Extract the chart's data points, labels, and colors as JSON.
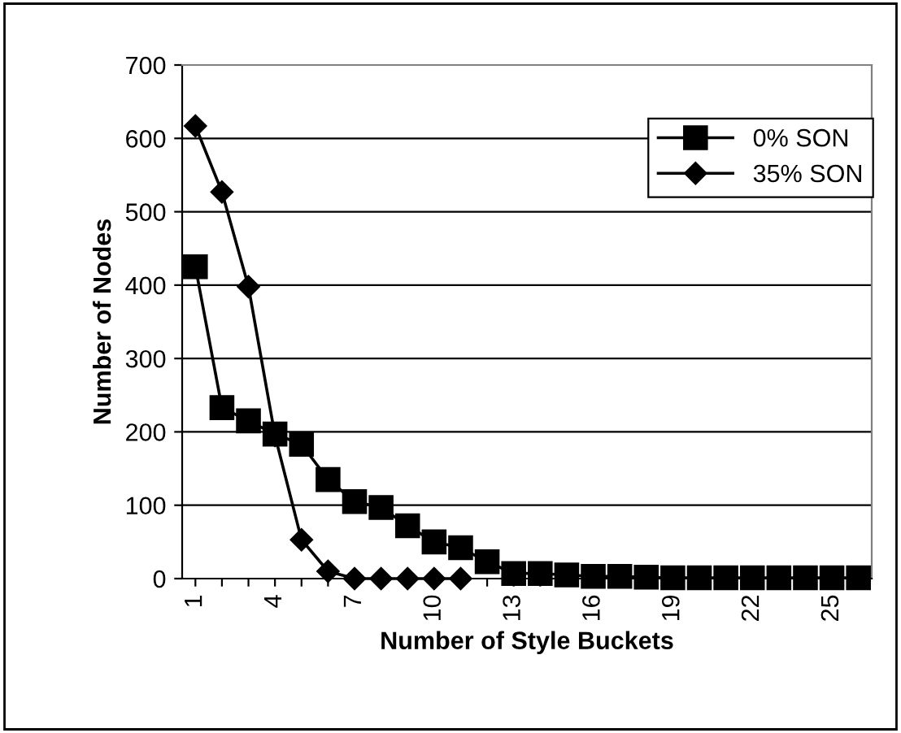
{
  "chart_data": {
    "type": "line",
    "xlabel": "Number of Style Buckets",
    "ylabel": "Number of Nodes",
    "categories": [
      "1",
      null,
      null,
      "4",
      null,
      null,
      "7",
      null,
      null,
      "10",
      null,
      null,
      "13",
      null,
      null,
      "16",
      null,
      null,
      "19",
      null,
      null,
      "22",
      null,
      null,
      "25",
      null
    ],
    "series": [
      {
        "name": "0% SON",
        "color": "#000000",
        "marker": "square",
        "values": [
          425,
          233,
          215,
          197,
          183,
          135,
          105,
          97,
          72,
          50,
          42,
          23,
          7,
          7,
          5,
          3,
          3,
          2,
          1,
          1,
          1,
          1,
          1,
          1,
          1,
          1
        ]
      },
      {
        "name": "35% SON",
        "color": "#000000",
        "marker": "diamond",
        "values": [
          617,
          527,
          398,
          195,
          53,
          10,
          0,
          0,
          0,
          0,
          0,
          null,
          null,
          null,
          null,
          null,
          null,
          null,
          null,
          null,
          null,
          null,
          null,
          null,
          null,
          null
        ]
      }
    ],
    "ylim": [
      0,
      700
    ],
    "yticks": [
      0,
      100,
      200,
      300,
      400,
      500,
      600,
      700
    ],
    "grid": "y",
    "legend": "top right",
    "line_style": "solid"
  }
}
